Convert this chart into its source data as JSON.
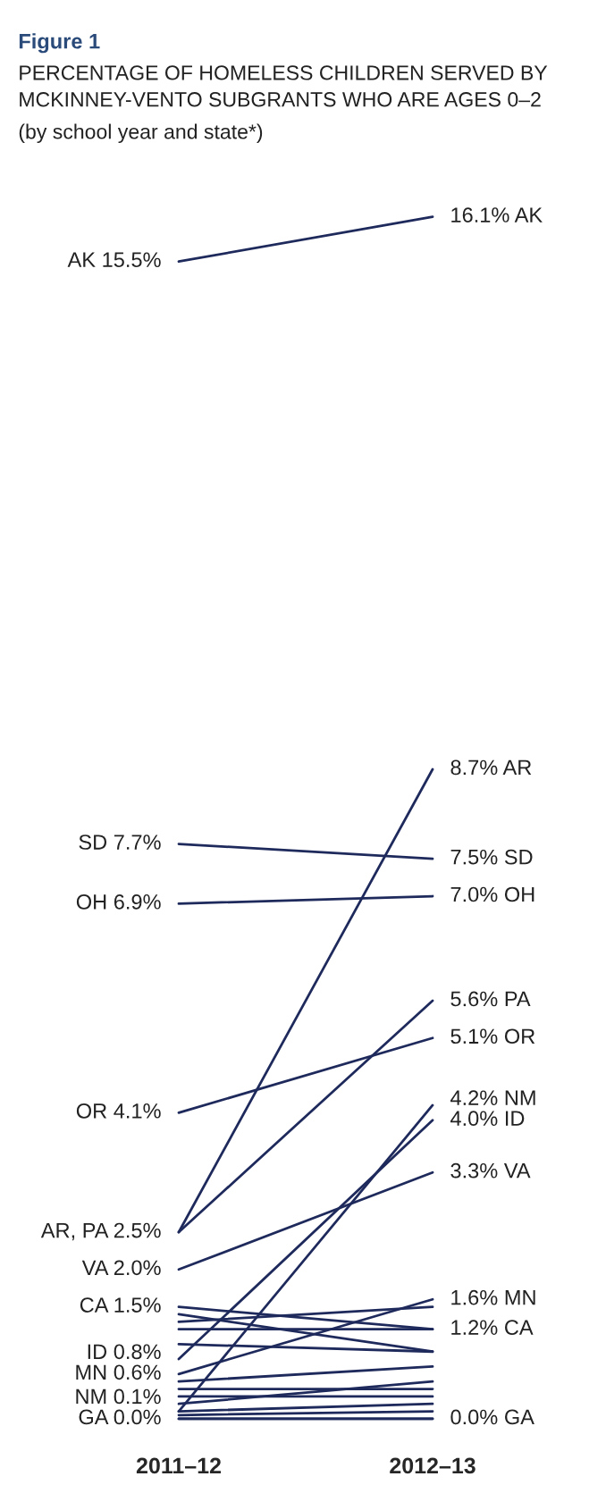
{
  "chart_data": {
    "type": "line",
    "title": "Figure 1",
    "subtitle": "PERCENTAGE OF HOMELESS CHILDREN SERVED BY\nMCKINNEY-VENTO SUBGRANTS WHO ARE AGES 0–2",
    "annotations": [
      "(by school year and state*)"
    ],
    "categories": [
      "2011–12",
      "2012–13"
    ],
    "tick_labels": "x",
    "grid": false,
    "legend": false,
    "marker": "none",
    "line_style": "solid",
    "series": [
      {
        "color": "#1f2a5c",
        "values": [
          15.5,
          16.1
        ],
        "value_labels": [
          "AK 15.5%",
          "16.1% AK"
        ]
      },
      {
        "color": "#1f2a5c",
        "values": [
          7.7,
          7.5
        ],
        "value_labels": [
          "SD 7.7%",
          "7.5% SD"
        ]
      },
      {
        "color": "#1f2a5c",
        "values": [
          6.9,
          7.0
        ],
        "value_labels": [
          "OH 6.9%",
          "7.0% OH"
        ]
      },
      {
        "color": "#1f2a5c",
        "values": [
          4.1,
          5.1
        ],
        "value_labels": [
          "OR 4.1%",
          "5.1% OR"
        ]
      },
      {
        "color": "#1f2a5c",
        "values": [
          2.5,
          8.7
        ],
        "value_labels": [
          "AR, PA 2.5%",
          "8.7% AR"
        ]
      },
      {
        "color": "#1f2a5c",
        "values": [
          2.5,
          5.6
        ],
        "value_labels": [
          null,
          "5.6% PA"
        ]
      },
      {
        "color": "#1f2a5c",
        "values": [
          2.0,
          3.3
        ],
        "value_labels": [
          "VA 2.0%",
          "3.3% VA"
        ]
      },
      {
        "color": "#1f2a5c",
        "values": [
          1.5,
          1.2
        ],
        "value_labels": [
          "CA 1.5%",
          "1.2% CA"
        ]
      },
      {
        "color": "#1f2a5c",
        "values": [
          0.8,
          4.0
        ],
        "value_labels": [
          "ID 0.8%",
          "4.0% ID"
        ]
      },
      {
        "color": "#1f2a5c",
        "values": [
          0.6,
          1.6
        ],
        "value_labels": [
          "MN 0.6%",
          "1.6% MN"
        ]
      },
      {
        "color": "#1f2a5c",
        "values": [
          0.1,
          4.2
        ],
        "value_labels": [
          "NM 0.1%",
          "4.2% NM"
        ]
      },
      {
        "color": "#1f2a5c",
        "values": [
          0.0,
          0.0
        ],
        "value_labels": [
          "GA 0.0%",
          "0.0% GA"
        ]
      },
      {
        "color": "#1f2a5c",
        "values": [
          1.4,
          0.9
        ]
      },
      {
        "color": "#1f2a5c",
        "values": [
          1.3,
          1.5
        ]
      },
      {
        "color": "#1f2a5c",
        "values": [
          1.2,
          1.2
        ]
      },
      {
        "color": "#1f2a5c",
        "values": [
          1.0,
          0.9
        ]
      },
      {
        "color": "#1f2a5c",
        "values": [
          0.5,
          0.7
        ]
      },
      {
        "color": "#1f2a5c",
        "values": [
          0.4,
          0.4
        ]
      },
      {
        "color": "#1f2a5c",
        "values": [
          0.3,
          0.3
        ]
      },
      {
        "color": "#1f2a5c",
        "values": [
          0.2,
          0.5
        ]
      },
      {
        "color": "#1f2a5c",
        "values": [
          0.1,
          0.2
        ]
      },
      {
        "color": "#1f2a5c",
        "values": [
          0.05,
          0.1
        ]
      },
      {
        "color": "#1f2a5c",
        "values": [
          0.0,
          0.0
        ]
      }
    ]
  }
}
